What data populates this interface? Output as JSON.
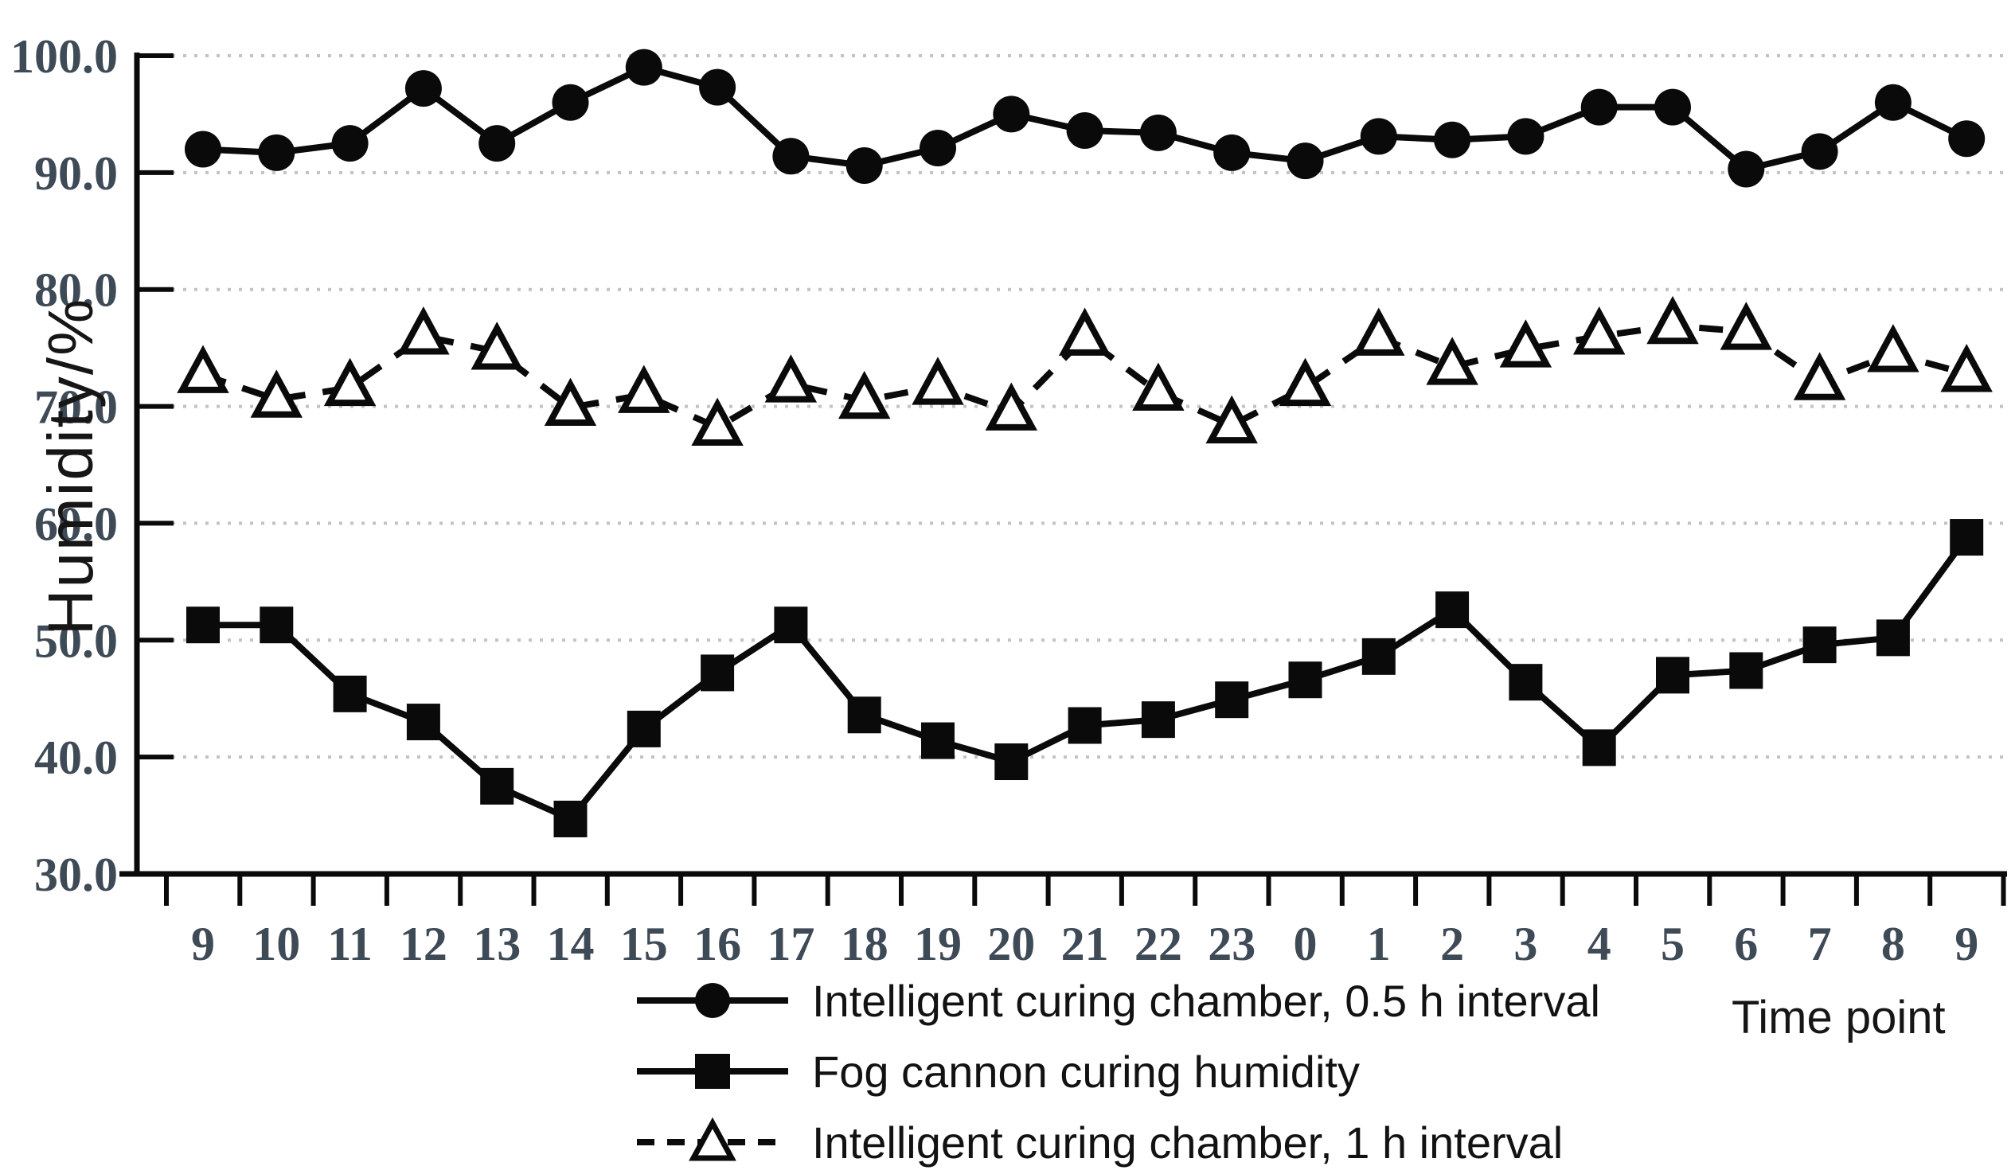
{
  "chart_data": {
    "type": "line",
    "title": "",
    "xlabel": "Time point",
    "ylabel": "Humidity/%",
    "ylim": [
      30,
      100
    ],
    "ytick_step": 10,
    "yticks": [
      "100.0",
      "90.0",
      "80.0",
      "70.0",
      "60.0",
      "50.0",
      "40.0",
      "30.0"
    ],
    "categories": [
      "9",
      "10",
      "11",
      "12",
      "13",
      "14",
      "15",
      "16",
      "17",
      "18",
      "19",
      "20",
      "21",
      "22",
      "23",
      "0",
      "1",
      "2",
      "3",
      "4",
      "5",
      "6",
      "7",
      "8",
      "9"
    ],
    "grid": "horizontal dotted gridlines",
    "legend_position": "bottom",
    "colors": {
      "series": "#0a0a0a",
      "tick_labels": "#3f4a57",
      "gridline": "#c3c3c3",
      "background": "#ffffff"
    },
    "series": [
      {
        "name": "Intelligent curing chamber, 0.5 h interval",
        "marker": "filled-circle",
        "line": "solid",
        "values": [
          92.0,
          91.7,
          92.5,
          97.2,
          92.5,
          96.0,
          99.0,
          97.3,
          91.4,
          90.6,
          92.1,
          95.0,
          93.6,
          93.4,
          91.7,
          91.0,
          93.1,
          92.8,
          93.1,
          95.6,
          95.6,
          90.3,
          91.8,
          96.0,
          92.9
        ]
      },
      {
        "name": "Fog cannon curing humidity",
        "marker": "filled-square",
        "line": "solid",
        "values": [
          51.3,
          51.3,
          45.4,
          43.0,
          37.5,
          34.7,
          42.4,
          47.2,
          51.3,
          43.6,
          41.4,
          39.6,
          42.7,
          43.2,
          44.9,
          46.6,
          48.6,
          52.6,
          46.4,
          40.8,
          47.0,
          47.4,
          49.6,
          50.2,
          58.8
        ]
      },
      {
        "name": "Intelligent curing chamber, 1 h interval",
        "marker": "open-triangle",
        "line": "dashed",
        "values": [
          72.7,
          70.6,
          71.6,
          76.0,
          74.7,
          69.9,
          71.0,
          68.2,
          71.9,
          70.5,
          71.7,
          69.5,
          75.9,
          71.2,
          68.4,
          71.6,
          75.9,
          73.4,
          74.9,
          76.0,
          76.9,
          76.4,
          72.1,
          74.5,
          72.8
        ]
      }
    ]
  }
}
